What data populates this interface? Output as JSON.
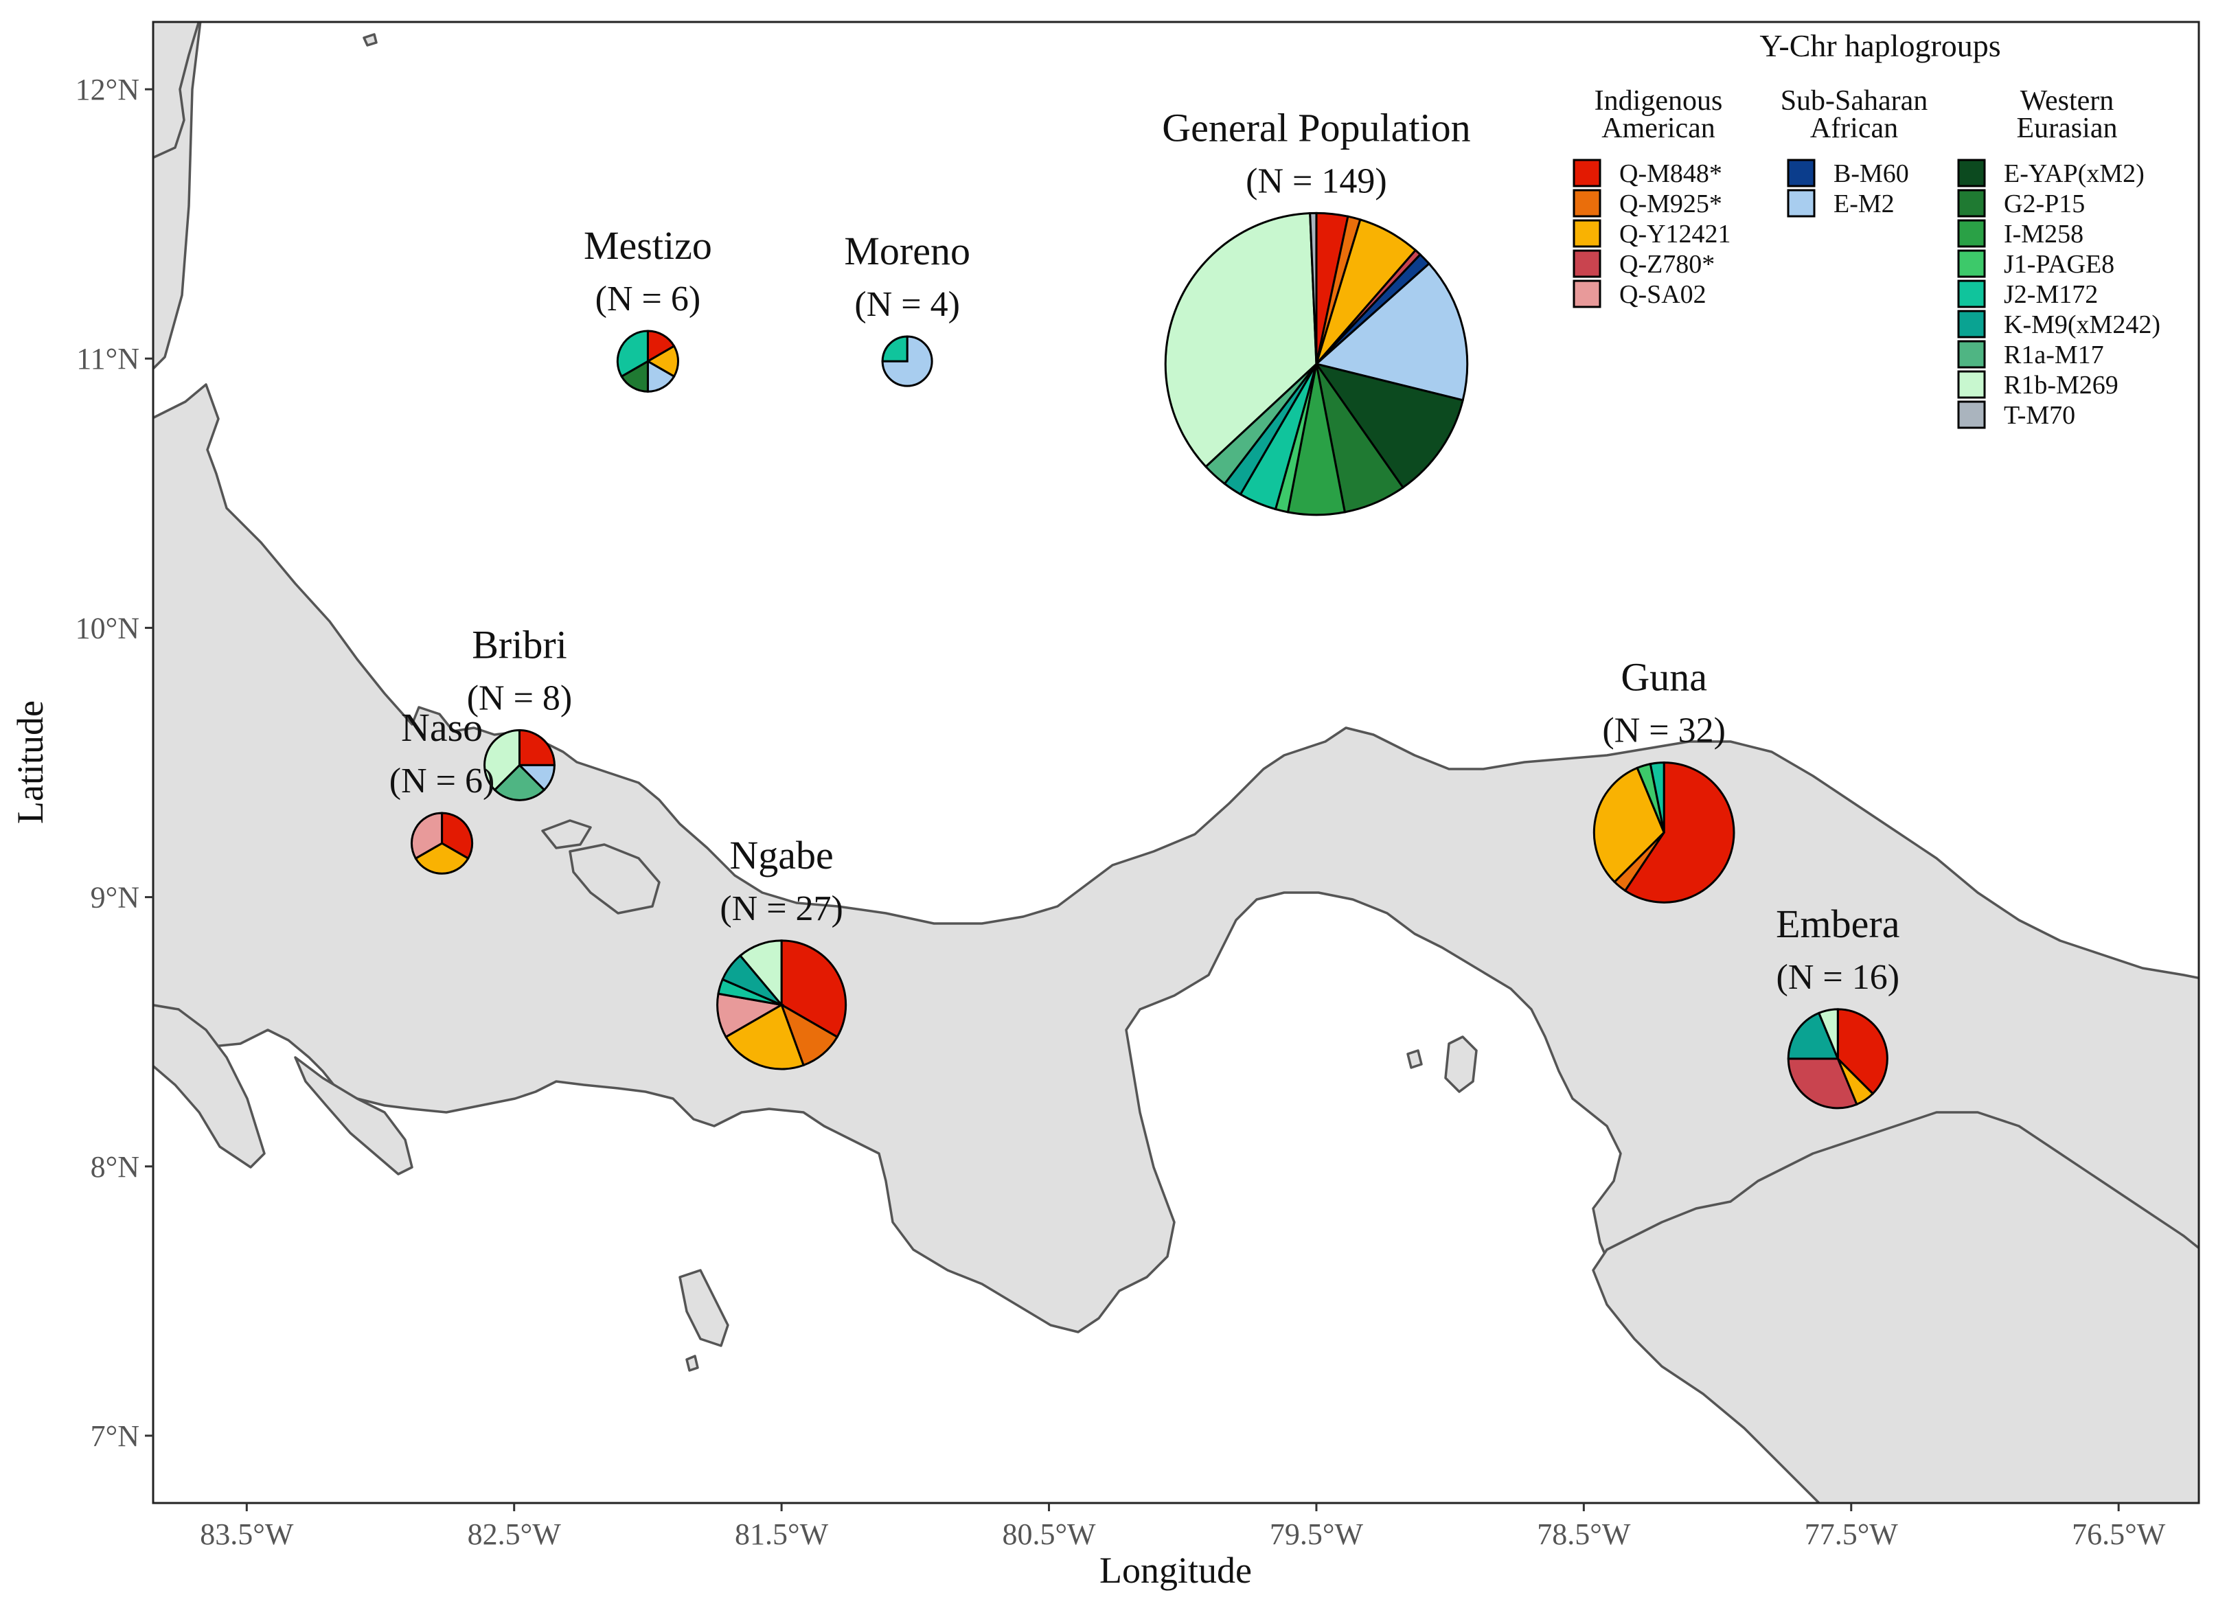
{
  "axes": {
    "x_title": "Longitude",
    "y_title": "Latitude",
    "x_ticks": [
      {
        "value": -83.5,
        "label": "83.5°W"
      },
      {
        "value": -82.5,
        "label": "82.5°W"
      },
      {
        "value": -81.5,
        "label": "81.5°W"
      },
      {
        "value": -80.5,
        "label": "80.5°W"
      },
      {
        "value": -79.5,
        "label": "79.5°W"
      },
      {
        "value": -78.5,
        "label": "78.5°W"
      },
      {
        "value": -77.5,
        "label": "77.5°W"
      },
      {
        "value": -76.5,
        "label": "76.5°W"
      }
    ],
    "y_ticks": [
      {
        "value": 12,
        "label": "12°N"
      },
      {
        "value": 11,
        "label": "11°N"
      },
      {
        "value": 10,
        "label": "10°N"
      },
      {
        "value": 9,
        "label": "9°N"
      },
      {
        "value": 8,
        "label": "8°N"
      },
      {
        "value": 7,
        "label": "7°N"
      }
    ],
    "xlim": [
      -83.85,
      -76.2
    ],
    "ylim": [
      6.75,
      12.25
    ]
  },
  "legend": {
    "title": "Y-Chr haplogroups",
    "groups": [
      {
        "name": "Indigenous\nAmerican",
        "items": [
          {
            "key": "Q-M848",
            "label": "Q-M848*",
            "color": "#e31a02"
          },
          {
            "key": "Q-M925",
            "label": "Q-M925*",
            "color": "#ea6e0b"
          },
          {
            "key": "Q-Y12421",
            "label": "Q-Y12421",
            "color": "#f9b202"
          },
          {
            "key": "Q-Z780",
            "label": "Q-Z780*",
            "color": "#c9444f"
          },
          {
            "key": "Q-SA02",
            "label": "Q-SA02",
            "color": "#e89a9a"
          }
        ]
      },
      {
        "name": "Sub-Saharan\nAfrican",
        "items": [
          {
            "key": "B-M60",
            "label": "B-M60",
            "color": "#0b3d8c"
          },
          {
            "key": "E-M2",
            "label": "E-M2",
            "color": "#a8cdef"
          }
        ]
      },
      {
        "name": "Western\nEurasian",
        "items": [
          {
            "key": "E-YAP",
            "label": "E-YAP(xM2)",
            "color": "#0c4a1f"
          },
          {
            "key": "G2-P15",
            "label": "G2-P15",
            "color": "#1f7a32"
          },
          {
            "key": "I-M258",
            "label": "I-M258",
            "color": "#2aa146"
          },
          {
            "key": "J1-PAGE8",
            "label": "J1-PAGE8",
            "color": "#3dc96a"
          },
          {
            "key": "J2-M172",
            "label": "J2-M172",
            "color": "#10c49c"
          },
          {
            "key": "K-M9",
            "label": "K-M9(xM242)",
            "color": "#0aa392"
          },
          {
            "key": "R1a-M17",
            "label": "R1a-M17",
            "color": "#4fb583"
          },
          {
            "key": "R1b-M269",
            "label": "R1b-M269",
            "color": "#c8f7cf"
          },
          {
            "key": "T-M70",
            "label": "T-M70",
            "color": "#aab4be"
          }
        ]
      }
    ]
  },
  "populations": [
    {
      "name": "General Population",
      "n_label": "(N = 149)",
      "N": 149,
      "lon": -79.5,
      "lat": 10.98,
      "counts": {
        "Q-M848": 5,
        "Q-M925": 2,
        "Q-Y12421": 10,
        "Q-Z780": 1,
        "B-M60": 2,
        "E-M2": 23,
        "E-YAP": 17,
        "G2-P15": 10,
        "I-M258": 9,
        "J1-PAGE8": 2,
        "J2-M172": 6,
        "K-M9": 3,
        "R1a-M17": 4,
        "R1b-M269": 54,
        "T-M70": 1
      }
    },
    {
      "name": "Mestizo",
      "n_label": "(N = 6)",
      "N": 6,
      "lon": -82.0,
      "lat": 10.99,
      "counts": {
        "Q-M848": 1,
        "Q-Y12421": 1,
        "E-M2": 1,
        "G2-P15": 1,
        "J2-M172": 2
      }
    },
    {
      "name": "Moreno",
      "n_label": "(N = 4)",
      "N": 4,
      "lon": -81.03,
      "lat": 10.99,
      "counts": {
        "E-M2": 3,
        "J2-M172": 1
      }
    },
    {
      "name": "Bribri",
      "n_label": "(N = 8)",
      "N": 8,
      "lon": -82.48,
      "lat": 9.49,
      "counts": {
        "Q-M848": 2,
        "E-M2": 1,
        "R1a-M17": 2,
        "R1b-M269": 3
      }
    },
    {
      "name": "Naso",
      "n_label": "(N = 6)",
      "N": 6,
      "lon": -82.77,
      "lat": 9.2,
      "counts": {
        "Q-M848": 2,
        "Q-Y12421": 2,
        "Q-SA02": 2
      }
    },
    {
      "name": "Ngabe",
      "n_label": "(N = 27)",
      "N": 27,
      "lon": -81.5,
      "lat": 8.6,
      "counts": {
        "Q-M848": 9,
        "Q-M925": 3,
        "Q-Y12421": 6,
        "Q-SA02": 3,
        "J2-M172": 1,
        "K-M9": 2,
        "R1b-M269": 3
      }
    },
    {
      "name": "Guna",
      "n_label": "(N = 32)",
      "N": 32,
      "lon": -78.2,
      "lat": 9.24,
      "counts": {
        "Q-M848": 19,
        "Q-M925": 1,
        "Q-Y12421": 10,
        "J1-PAGE8": 1,
        "J2-M172": 1
      }
    },
    {
      "name": "Embera",
      "n_label": "(N = 16)",
      "N": 16,
      "lon": -77.55,
      "lat": 8.4,
      "counts": {
        "Q-M848": 6,
        "Q-Y12421": 1,
        "Q-Z780": 5,
        "K-M9": 3,
        "R1b-M269": 1
      }
    }
  ]
}
